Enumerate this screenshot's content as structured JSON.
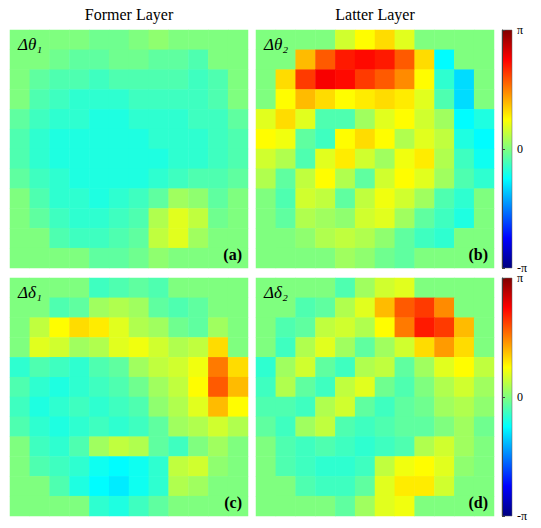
{
  "chart_data": {
    "type": "heatmap",
    "column_titles": [
      "Former Layer",
      "Latter Layer"
    ],
    "colorbar": {
      "range": [
        -3.14159,
        3.14159
      ],
      "ticks": [
        {
          "value": -3.14159,
          "label": "-π"
        },
        0,
        {
          "value": 3.14159,
          "label": "π"
        }
      ]
    },
    "panels": [
      {
        "title": "Δθ₁",
        "letter": "(a)",
        "cells": [
          [
            0,
            0,
            0,
            0,
            -0.1,
            -0.1,
            0,
            0.1,
            0,
            0,
            0,
            0
          ],
          [
            0,
            0,
            -0.1,
            -0.2,
            -0.2,
            -0.1,
            -0.1,
            -0.2,
            -0.2,
            -0.3,
            0,
            0
          ],
          [
            0,
            -0.2,
            -0.3,
            -0.3,
            -0.4,
            -0.3,
            -0.3,
            -0.3,
            -0.3,
            -0.4,
            -0.3,
            0
          ],
          [
            0,
            -0.3,
            -0.4,
            -0.5,
            -0.5,
            -0.5,
            -0.4,
            -0.4,
            -0.4,
            -0.4,
            -0.3,
            0
          ],
          [
            -0.2,
            -0.4,
            -0.5,
            -0.5,
            -0.6,
            -0.6,
            -0.5,
            -0.5,
            -0.5,
            -0.4,
            -0.4,
            -0.2
          ],
          [
            -0.3,
            -0.5,
            -0.6,
            -0.6,
            -0.6,
            -0.6,
            -0.6,
            -0.5,
            -0.5,
            -0.5,
            -0.4,
            -0.3
          ],
          [
            -0.3,
            -0.5,
            -0.6,
            -0.6,
            -0.6,
            -0.6,
            -0.6,
            -0.6,
            -0.5,
            -0.5,
            -0.4,
            -0.3
          ],
          [
            -0.2,
            -0.4,
            -0.5,
            -0.6,
            -0.6,
            -0.6,
            -0.6,
            -0.5,
            -0.4,
            -0.3,
            -0.3,
            -0.2
          ],
          [
            0,
            -0.3,
            -0.5,
            -0.5,
            -0.6,
            -0.5,
            -0.4,
            -0.2,
            0.2,
            0.1,
            -0.2,
            0
          ],
          [
            0,
            -0.2,
            -0.4,
            -0.5,
            -0.5,
            -0.4,
            -0.3,
            0.3,
            0.6,
            0.4,
            -0.1,
            0
          ],
          [
            0,
            0,
            -0.3,
            -0.4,
            -0.4,
            -0.3,
            -0.2,
            0.4,
            0.6,
            0.2,
            0,
            0
          ],
          [
            0,
            0,
            0,
            0,
            -0.2,
            -0.2,
            -0.1,
            0.1,
            0,
            0,
            0,
            0
          ]
        ]
      },
      {
        "title": "Δθ₂",
        "letter": "(b)",
        "cells": [
          [
            0,
            0,
            0,
            0,
            0.5,
            0.8,
            1.0,
            0.6,
            0,
            0,
            0,
            0
          ],
          [
            0,
            0,
            1.2,
            1.8,
            2.2,
            2.3,
            2.2,
            1.8,
            1.0,
            -0.8,
            0,
            0
          ],
          [
            0,
            1.0,
            2.0,
            2.4,
            2.3,
            2.0,
            1.8,
            1.5,
            0.8,
            -0.5,
            -1.0,
            0
          ],
          [
            0,
            0.8,
            1.2,
            1.0,
            0.8,
            0.9,
            1.0,
            0.9,
            0.6,
            -0.3,
            -1.0,
            0
          ],
          [
            0.6,
            1.0,
            0.6,
            -0.3,
            -0.3,
            0.2,
            0.6,
            0.8,
            0.5,
            0.2,
            -0.8,
            -0.6
          ],
          [
            0.8,
            0.7,
            -0.2,
            -0.4,
            0.8,
            1.0,
            0.8,
            0.3,
            0.6,
            0.4,
            -0.6,
            -0.8
          ],
          [
            0.5,
            0.3,
            -0.3,
            0.6,
            0.9,
            0.5,
            0.2,
            0.7,
            0.9,
            0.3,
            -0.4,
            -0.7
          ],
          [
            0.3,
            -0.2,
            0.4,
            0.8,
            0.3,
            -0.2,
            0.5,
            0.8,
            0.6,
            0.2,
            -0.3,
            -0.5
          ],
          [
            0,
            -0.3,
            0.5,
            0.4,
            -0.2,
            0.4,
            0.7,
            0.5,
            0.2,
            -0.3,
            -0.5,
            0
          ],
          [
            0,
            -0.2,
            0.3,
            0.2,
            0.1,
            0.5,
            0.6,
            0.2,
            -0.2,
            -0.4,
            -0.6,
            0
          ],
          [
            0,
            0,
            0.1,
            0.3,
            0.4,
            0.3,
            0.1,
            -0.2,
            -0.4,
            -0.5,
            0,
            0
          ],
          [
            0,
            0,
            0,
            0,
            0.2,
            0.1,
            -0.1,
            -0.2,
            0,
            0,
            0,
            0
          ]
        ]
      },
      {
        "title": "Δδ₁",
        "letter": "(c)",
        "cells": [
          [
            0,
            0,
            0,
            0,
            -0.4,
            -0.3,
            -0.2,
            -0.3,
            0,
            0,
            0,
            0
          ],
          [
            0,
            0,
            -0.3,
            -0.2,
            0.2,
            0.3,
            0.2,
            -0.2,
            -0.3,
            -0.2,
            0,
            0
          ],
          [
            0,
            0.4,
            0.8,
            1.0,
            0.9,
            0.6,
            0.3,
            0.2,
            -0.1,
            -0.2,
            0.2,
            0
          ],
          [
            0,
            0.6,
            0.5,
            0.2,
            0.3,
            0.6,
            0.7,
            0.5,
            0.3,
            0.4,
            1.0,
            0
          ],
          [
            -0.5,
            -0.3,
            -0.4,
            -0.5,
            -0.3,
            -0.2,
            0.2,
            0.4,
            0.5,
            0.7,
            1.6,
            1.0
          ],
          [
            -0.3,
            -0.5,
            -0.6,
            -0.5,
            -0.4,
            -0.3,
            -0.1,
            0.2,
            0.4,
            0.8,
            1.8,
            1.2
          ],
          [
            -0.4,
            -0.6,
            -0.5,
            -0.4,
            -0.5,
            -0.4,
            -0.3,
            0.1,
            0.3,
            0.6,
            1.2,
            0.8
          ],
          [
            -0.3,
            -0.5,
            -0.6,
            -0.5,
            -0.4,
            -0.5,
            -0.4,
            -0.2,
            0.2,
            0.3,
            0.5,
            0.3
          ],
          [
            0,
            -0.4,
            -0.5,
            -0.3,
            0.2,
            0.4,
            0.3,
            -0.2,
            -0.4,
            0.0,
            0.2,
            0
          ],
          [
            0,
            -0.3,
            -0.4,
            -0.5,
            -0.7,
            -0.8,
            -0.7,
            -0.5,
            0.4,
            0.5,
            0.1,
            0
          ],
          [
            0,
            0,
            -0.3,
            -0.6,
            -0.8,
            -0.9,
            -0.7,
            -0.5,
            0.3,
            0.2,
            0,
            0
          ],
          [
            0,
            0,
            0,
            0,
            -0.5,
            -0.6,
            -0.4,
            -0.2,
            0,
            0,
            0,
            0
          ]
        ]
      },
      {
        "title": "Δδ₂",
        "letter": "(d)",
        "cells": [
          [
            0,
            0,
            0,
            0,
            -0.3,
            0.2,
            0.5,
            0.6,
            0,
            0,
            0,
            0
          ],
          [
            0,
            0,
            -0.3,
            -0.2,
            0.3,
            0.6,
            1.2,
            1.8,
            2.0,
            1.5,
            0,
            0
          ],
          [
            0,
            -0.3,
            -0.2,
            0.4,
            0.5,
            0.3,
            0.8,
            1.6,
            2.2,
            2.0,
            1.2,
            0
          ],
          [
            0,
            -0.4,
            0.3,
            0.6,
            0.2,
            -0.2,
            0.2,
            0.5,
            1.0,
            1.4,
            1.0,
            0
          ],
          [
            -0.5,
            0.2,
            0.5,
            -0.2,
            -0.4,
            0.3,
            0.4,
            -0.2,
            0.2,
            0.6,
            0.8,
            0.4
          ],
          [
            -0.4,
            0.3,
            -0.2,
            -0.4,
            0.4,
            0.6,
            -0.1,
            -0.3,
            0.0,
            0.3,
            0.5,
            0.2
          ],
          [
            -0.3,
            -0.3,
            -0.4,
            0.3,
            0.5,
            -0.2,
            -0.4,
            -0.2,
            -0.1,
            0.2,
            0.3,
            0.1
          ],
          [
            -0.2,
            -0.4,
            0.2,
            0.4,
            -0.3,
            -0.4,
            -0.3,
            -0.2,
            -0.2,
            0.0,
            0.2,
            -0.1
          ],
          [
            0,
            -0.3,
            -0.4,
            -0.3,
            -0.4,
            -0.5,
            -0.4,
            -0.3,
            0.3,
            0.5,
            0.2,
            0
          ],
          [
            0,
            -0.3,
            -0.4,
            -0.5,
            -0.5,
            -0.4,
            0.4,
            0.7,
            0.8,
            0.6,
            0.1,
            0
          ],
          [
            0,
            0,
            -0.3,
            -0.4,
            -0.4,
            -0.2,
            0.6,
            0.9,
            0.9,
            0.5,
            0,
            0
          ],
          [
            0,
            0,
            0,
            0,
            -0.2,
            0.2,
            0.6,
            0.7,
            0,
            0,
            0,
            0
          ]
        ]
      }
    ]
  }
}
